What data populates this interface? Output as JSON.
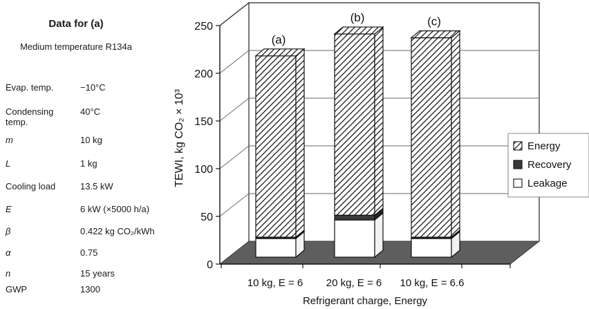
{
  "table": {
    "title": "Data for (a)",
    "subtitle": "Medium temperature R134a",
    "rows": [
      {
        "label": "Evap. temp.",
        "value": "−10°C",
        "italic": false
      },
      {
        "label": "Condensing temp.",
        "value": "40°C",
        "italic": false
      },
      {
        "label": "m",
        "value": "10 kg",
        "italic": true
      },
      {
        "label": "L",
        "value": "1 kg",
        "italic": true
      },
      {
        "label": "Cooling load",
        "value": "13.5 kW",
        "italic": false
      },
      {
        "label": "E",
        "value": "6 kW (×5000 h/a)",
        "italic": true
      },
      {
        "label": "β",
        "value": "0.422 kg CO₂/kWh",
        "italic": true
      },
      {
        "label": "α",
        "value": "0.75",
        "italic": true
      },
      {
        "label": "n",
        "value": "15 years",
        "italic": true
      },
      {
        "label": "GWP",
        "value": "1300",
        "italic": false
      }
    ]
  },
  "chart_data": {
    "type": "bar",
    "stacked": true,
    "style": "3d",
    "categories": [
      "10 kg, E = 6",
      "20 kg, E = 6",
      "10 kg, E = 6.6"
    ],
    "bar_labels": [
      "(a)",
      "(b)",
      "(c)"
    ],
    "series": [
      {
        "name": "Leakage",
        "values": [
          19.5,
          39,
          19.5
        ],
        "color": "#ffffff",
        "pattern": "none"
      },
      {
        "name": "Recovery",
        "values": [
          1.5,
          5,
          1.5
        ],
        "color": "#3a3a3a",
        "pattern": "solid"
      },
      {
        "name": "Energy",
        "values": [
          190,
          190,
          209
        ],
        "color": "#ffffff",
        "pattern": "diagonal-hatch"
      }
    ],
    "xlabel": "Refrigerant charge, Energy",
    "ylabel": "TEWI, kg CO₂ × 10³",
    "ylim": [
      0,
      250
    ],
    "yticks": [
      0,
      50,
      100,
      150,
      200,
      250
    ],
    "grid": true,
    "legend": {
      "position": "right",
      "order": [
        "Energy",
        "Recovery",
        "Leakage"
      ]
    },
    "colors": {
      "floor": "#5e5e5e",
      "hatch": "#1a1a1a",
      "bar_edge": "#111111"
    }
  }
}
